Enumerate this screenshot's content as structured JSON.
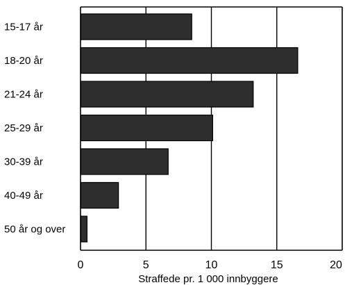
{
  "chart_data": {
    "type": "bar",
    "orientation": "horizontal",
    "categories": [
      "15-17 år",
      "18-20 år",
      "21-24 år",
      "25-29 år",
      "30-39 år",
      "40-49 år",
      "50 år og over"
    ],
    "values": [
      8.5,
      16.6,
      13.2,
      10.1,
      6.7,
      2.9,
      0.5
    ],
    "title": "",
    "xlabel": "Straffede pr. 1 000 innbyggere",
    "ylabel": "",
    "xlim": [
      0,
      20
    ],
    "xticks": [
      0,
      5,
      10,
      15,
      20
    ],
    "xtick_labels": [
      "0",
      "5",
      "10",
      "15",
      "20"
    ],
    "grid": "vertical",
    "legend": "none",
    "bar_color": "#2e2e2e",
    "grid_color": "#000000"
  }
}
